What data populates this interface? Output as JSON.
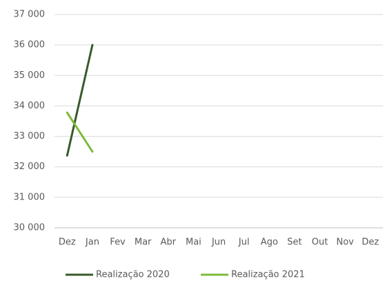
{
  "chart_data": {
    "type": "line",
    "categories": [
      "Dez",
      "Jan",
      "Fev",
      "Mar",
      "Abr",
      "Mai",
      "Jun",
      "Jul",
      "Ago",
      "Set",
      "Out",
      "Nov",
      "Dez"
    ],
    "series": [
      {
        "name": "Realização 2020",
        "color": "#375a2a",
        "values": [
          32370,
          36000,
          null,
          null,
          null,
          null,
          null,
          null,
          null,
          null,
          null,
          null,
          null
        ]
      },
      {
        "name": "Realização 2021",
        "color": "#7dba3a",
        "values": [
          33780,
          32500,
          null,
          null,
          null,
          null,
          null,
          null,
          null,
          null,
          null,
          null,
          null
        ]
      }
    ],
    "ylim": [
      30000,
      37000
    ],
    "yticks": [
      {
        "value": 30000,
        "label": "30 000"
      },
      {
        "value": 31000,
        "label": "31 000"
      },
      {
        "value": 32000,
        "label": "32 000"
      },
      {
        "value": 33000,
        "label": "33 000"
      },
      {
        "value": 34000,
        "label": "34 000"
      },
      {
        "value": 35000,
        "label": "35 000"
      },
      {
        "value": 36000,
        "label": "36 000"
      },
      {
        "value": 37000,
        "label": "37 000"
      }
    ],
    "grid": true,
    "legend": "bottom"
  }
}
